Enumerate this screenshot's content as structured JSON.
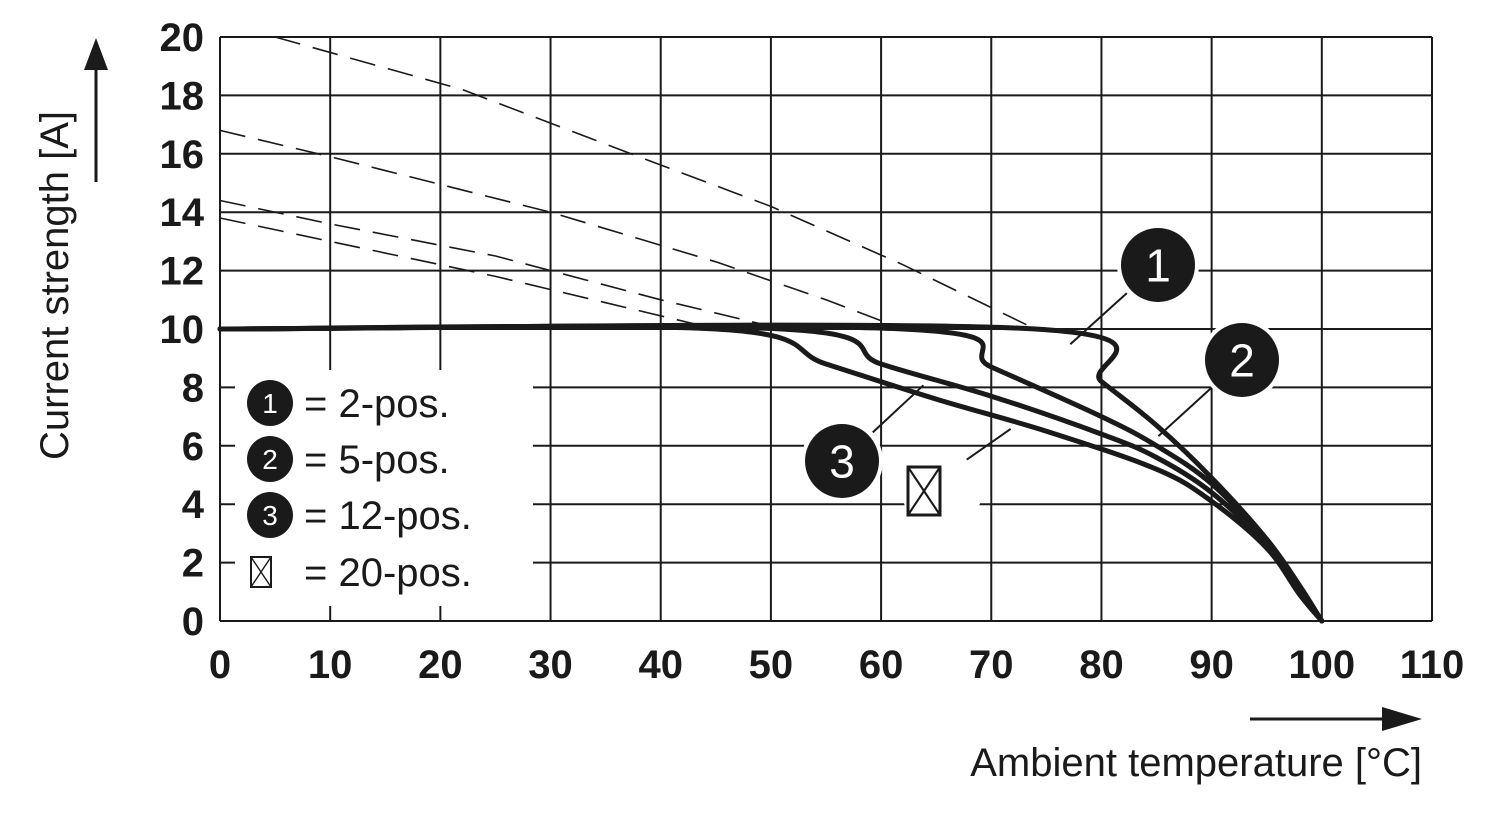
{
  "chart_data": {
    "type": "line",
    "title": "",
    "xlabel": "Ambient temperature [°C]",
    "ylabel": "Current strength [A]",
    "xlim": [
      0,
      110
    ],
    "ylim": [
      0,
      20
    ],
    "xticks": [
      0,
      10,
      20,
      30,
      40,
      50,
      60,
      70,
      80,
      90,
      100,
      110
    ],
    "yticks": [
      0,
      2,
      4,
      6,
      8,
      10,
      12,
      14,
      16,
      18,
      20
    ],
    "grid": true,
    "legend_position": "bottom-left",
    "rated_current": 10,
    "series": [
      {
        "name": "2-pos.",
        "marker": "1",
        "derating": [
          [
            0,
            10
          ],
          [
            74,
            10
          ],
          [
            80,
            8.2
          ],
          [
            85,
            6.7
          ],
          [
            90,
            4.9
          ],
          [
            95,
            2.8
          ],
          [
            98,
            1.2
          ],
          [
            100,
            0
          ]
        ],
        "extrapolation": [
          [
            5,
            20
          ],
          [
            22,
            18.2
          ],
          [
            38,
            15.9
          ],
          [
            50,
            14.2
          ],
          [
            62,
            12.2
          ],
          [
            74,
            10
          ]
        ]
      },
      {
        "name": "5-pos.",
        "marker": "2",
        "derating": [
          [
            0,
            10
          ],
          [
            62,
            10
          ],
          [
            70,
            8.7
          ],
          [
            80,
            7.0
          ],
          [
            85,
            6.0
          ],
          [
            90,
            4.7
          ],
          [
            95,
            2.7
          ],
          [
            98,
            1.1
          ],
          [
            100,
            0
          ]
        ],
        "extrapolation": [
          [
            0,
            16.8
          ],
          [
            10,
            15.9
          ],
          [
            30,
            14.0
          ],
          [
            45,
            12.3
          ],
          [
            55,
            11.0
          ],
          [
            62,
            10
          ]
        ]
      },
      {
        "name": "12-pos.",
        "marker": "3",
        "derating": [
          [
            0,
            10
          ],
          [
            51,
            10
          ],
          [
            60,
            8.8
          ],
          [
            70,
            7.7
          ],
          [
            80,
            6.4
          ],
          [
            85,
            5.6
          ],
          [
            90,
            4.4
          ],
          [
            95,
            2.6
          ],
          [
            98,
            1.0
          ],
          [
            100,
            0
          ]
        ],
        "extrapolation": [
          [
            0,
            14.4
          ],
          [
            10,
            13.6
          ],
          [
            25,
            12.5
          ],
          [
            40,
            11.0
          ],
          [
            51,
            10
          ]
        ]
      },
      {
        "name": "20-pos.",
        "marker": "box",
        "derating": [
          [
            0,
            10
          ],
          [
            45,
            10
          ],
          [
            55,
            8.8
          ],
          [
            65,
            7.6
          ],
          [
            75,
            6.5
          ],
          [
            85,
            5.2
          ],
          [
            90,
            4.1
          ],
          [
            95,
            2.5
          ],
          [
            98,
            0.9
          ],
          [
            100,
            0
          ]
        ],
        "extrapolation": [
          [
            0,
            13.8
          ],
          [
            10,
            13.0
          ],
          [
            25,
            11.8
          ],
          [
            35,
            10.9
          ],
          [
            45,
            10
          ]
        ]
      }
    ],
    "legend": [
      {
        "marker": "1",
        "text": "= 2-pos."
      },
      {
        "marker": "2",
        "text": "= 5-pos."
      },
      {
        "marker": "3",
        "text": "= 12-pos."
      },
      {
        "marker": "box",
        "text": "= 20-pos."
      }
    ]
  }
}
